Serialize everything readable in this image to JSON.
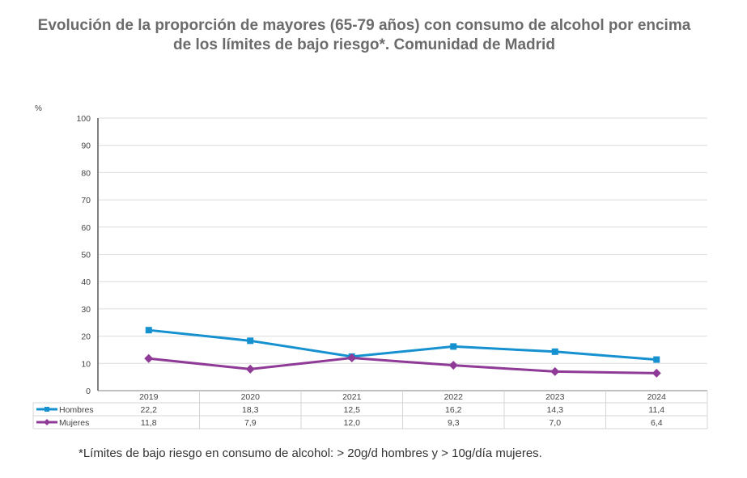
{
  "title_line1": "Evolución de la proporción de mayores (65-79 años) con consumo de alcohol por encima",
  "title_line2": "de los límites de bajo riesgo*. Comunidad de Madrid",
  "footnote": "*Límites de bajo riesgo en consumo de alcohol: > 20g/d hombres y > 10g/día mujeres.",
  "chart_data": {
    "type": "line",
    "ylabel": "%",
    "ylim": [
      0,
      100
    ],
    "yticks": [
      0,
      10,
      20,
      30,
      40,
      50,
      60,
      70,
      80,
      90,
      100
    ],
    "grid": true,
    "legend": "data table below chart",
    "categories": [
      "2019",
      "2020",
      "2021",
      "2022",
      "2023",
      "2024"
    ],
    "series": [
      {
        "name": "Hombres",
        "color": "#1591d0",
        "marker": "square",
        "values": [
          22.2,
          18.3,
          12.5,
          16.2,
          14.3,
          11.4
        ],
        "labels": [
          "22,2",
          "18,3",
          "12,5",
          "16,2",
          "14,3",
          "11,4"
        ]
      },
      {
        "name": "Mujeres",
        "color": "#8e3a96",
        "marker": "diamond",
        "values": [
          11.8,
          7.9,
          12.0,
          9.3,
          7.0,
          6.4
        ],
        "labels": [
          "11,8",
          "7,9",
          "12,0",
          "9,3",
          "7,0",
          "6,4"
        ]
      }
    ]
  }
}
